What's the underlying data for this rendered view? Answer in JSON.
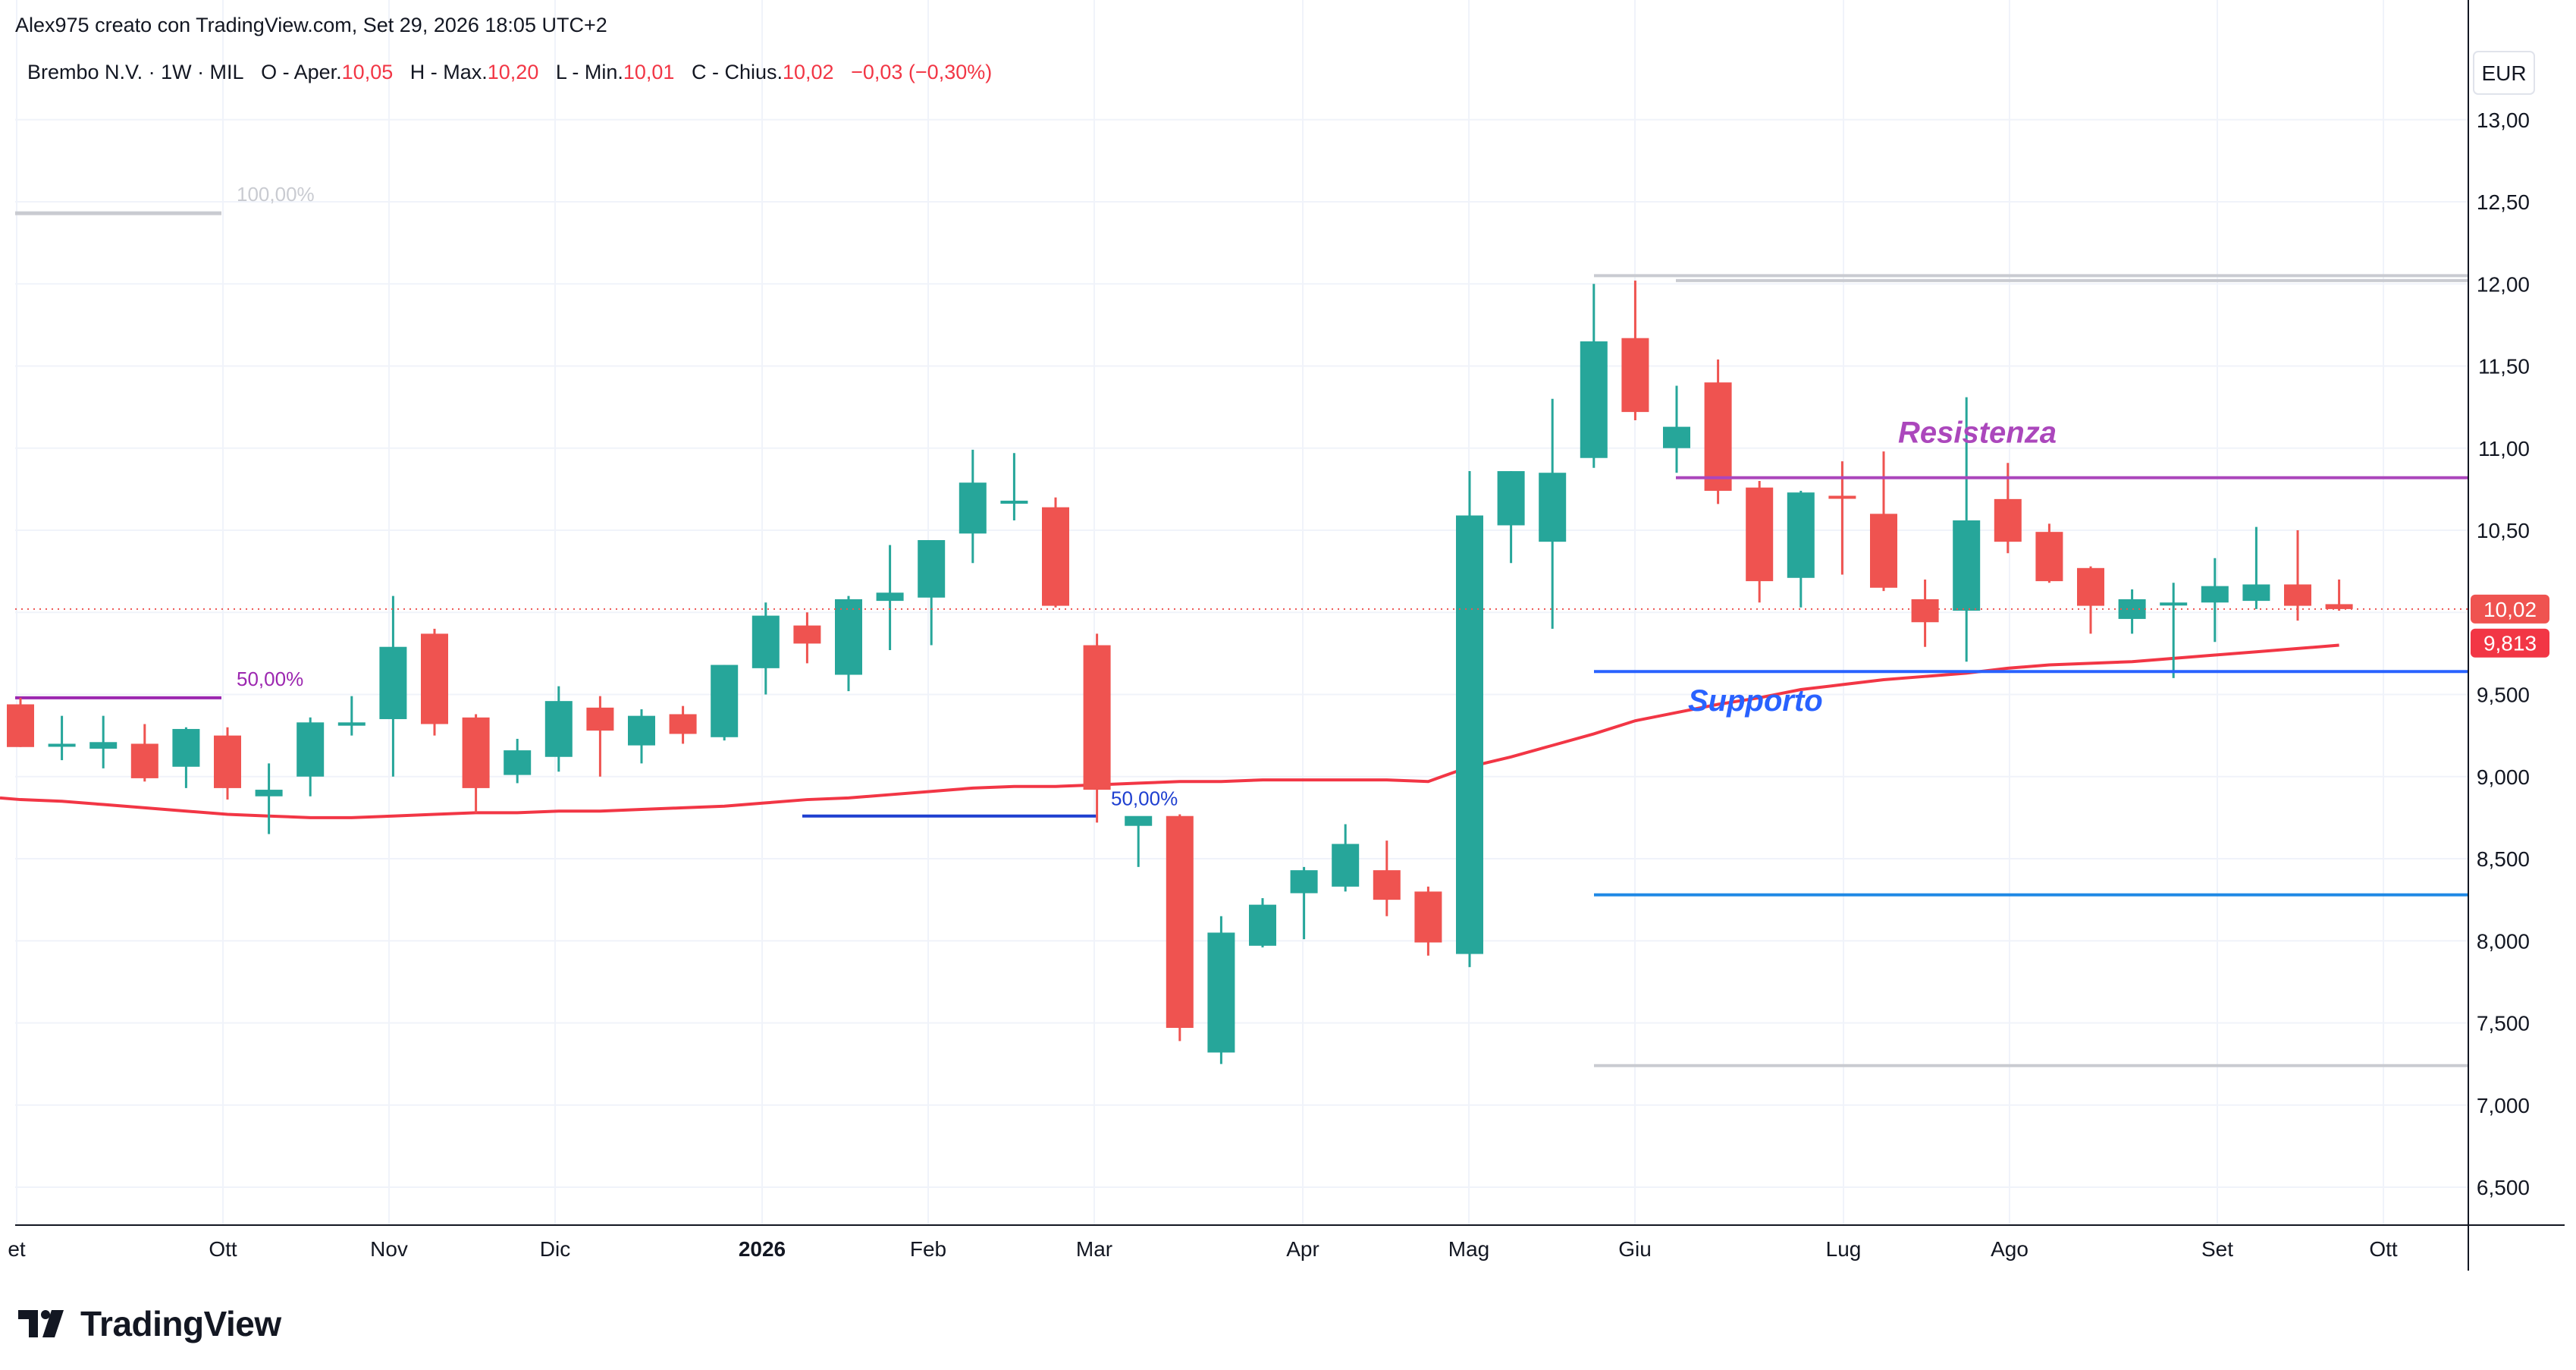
{
  "header": {
    "attribution": "Alex975 creato con TradingView.com, Set 29, 2026 18:05 UTC+2",
    "symbol": "Brembo N.V. · 1W · MIL",
    "open_label": "O - Aper.",
    "open": "10,05",
    "high_label": "H - Max.",
    "high": "10,20",
    "low_label": "L - Min.",
    "low": "10,01",
    "close_label": "C - Chius.",
    "close": "10,02",
    "change": "−0,03 (−0,30%)"
  },
  "brand": {
    "name": "TradingView",
    "icon": "tradingview-logo-icon"
  },
  "colors": {
    "up": "#26a69a",
    "down": "#ef5350",
    "ma": "#f23645",
    "resistance": "#ab47bc",
    "support": "#2962ff",
    "support_line": "#1e88e5",
    "fib_purple": "#9c27b0",
    "fib_blue": "#1e3fd0",
    "gray": "#c9cbd1",
    "grid": "#f0f3fa"
  },
  "chart_data": {
    "type": "candlestick",
    "currency": "EUR",
    "interval": "1W",
    "ylim": [
      6.25,
      13.25
    ],
    "y_ticks": [
      "6,500",
      "7,000",
      "7,500",
      "8,000",
      "8,500",
      "9,000",
      "9,500",
      "10,00",
      "10,50",
      "11,00",
      "11,50",
      "12,00",
      "12,50",
      "13,00"
    ],
    "x_ticks": [
      {
        "label": "et",
        "bold": false
      },
      {
        "label": "Ott",
        "bold": false
      },
      {
        "label": "Nov",
        "bold": false
      },
      {
        "label": "Dic",
        "bold": false
      },
      {
        "label": "2026",
        "bold": true
      },
      {
        "label": "Feb",
        "bold": false
      },
      {
        "label": "Mar",
        "bold": false
      },
      {
        "label": "Apr",
        "bold": false
      },
      {
        "label": "Mag",
        "bold": false
      },
      {
        "label": "Giu",
        "bold": false
      },
      {
        "label": "Lug",
        "bold": false
      },
      {
        "label": "Ago",
        "bold": false
      },
      {
        "label": "Set",
        "bold": false
      },
      {
        "label": "Ott",
        "bold": false
      }
    ],
    "candles": [
      {
        "o": 9.44,
        "h": 9.48,
        "l": 9.18,
        "c": 9.18
      },
      {
        "o": 9.2,
        "h": 9.37,
        "l": 9.1,
        "c": 9.2
      },
      {
        "o": 9.17,
        "h": 9.37,
        "l": 9.05,
        "c": 9.21
      },
      {
        "o": 9.2,
        "h": 9.32,
        "l": 8.97,
        "c": 8.99
      },
      {
        "o": 9.06,
        "h": 9.3,
        "l": 8.93,
        "c": 9.29
      },
      {
        "o": 9.25,
        "h": 9.3,
        "l": 8.86,
        "c": 8.93
      },
      {
        "o": 8.88,
        "h": 9.08,
        "l": 8.65,
        "c": 8.92
      },
      {
        "o": 9.0,
        "h": 9.36,
        "l": 8.88,
        "c": 9.33
      },
      {
        "o": 9.31,
        "h": 9.49,
        "l": 9.25,
        "c": 9.33
      },
      {
        "o": 9.35,
        "h": 10.1,
        "l": 9.0,
        "c": 9.79
      },
      {
        "o": 9.87,
        "h": 9.9,
        "l": 9.25,
        "c": 9.32
      },
      {
        "o": 9.36,
        "h": 9.38,
        "l": 8.78,
        "c": 8.93
      },
      {
        "o": 9.01,
        "h": 9.23,
        "l": 8.96,
        "c": 9.16
      },
      {
        "o": 9.12,
        "h": 9.55,
        "l": 9.03,
        "c": 9.46
      },
      {
        "o": 9.42,
        "h": 9.49,
        "l": 9.0,
        "c": 9.28
      },
      {
        "o": 9.19,
        "h": 9.41,
        "l": 9.08,
        "c": 9.37
      },
      {
        "o": 9.38,
        "h": 9.43,
        "l": 9.2,
        "c": 9.26
      },
      {
        "o": 9.24,
        "h": 9.68,
        "l": 9.22,
        "c": 9.68
      },
      {
        "o": 9.66,
        "h": 10.06,
        "l": 9.5,
        "c": 9.98
      },
      {
        "o": 9.92,
        "h": 10.0,
        "l": 9.69,
        "c": 9.81
      },
      {
        "o": 9.62,
        "h": 10.1,
        "l": 9.52,
        "c": 10.08
      },
      {
        "o": 10.07,
        "h": 10.41,
        "l": 9.77,
        "c": 10.12
      },
      {
        "o": 10.09,
        "h": 10.44,
        "l": 9.8,
        "c": 10.44
      },
      {
        "o": 10.48,
        "h": 10.99,
        "l": 10.3,
        "c": 10.79
      },
      {
        "o": 10.68,
        "h": 10.97,
        "l": 10.56,
        "c": 10.68
      },
      {
        "o": 10.64,
        "h": 10.7,
        "l": 10.03,
        "c": 10.04
      },
      {
        "o": 9.8,
        "h": 9.87,
        "l": 8.72,
        "c": 8.92
      },
      {
        "o": 8.7,
        "h": 8.75,
        "l": 8.45,
        "c": 8.76
      },
      {
        "o": 8.76,
        "h": 8.77,
        "l": 7.39,
        "c": 7.47
      },
      {
        "o": 7.32,
        "h": 8.15,
        "l": 7.25,
        "c": 8.05
      },
      {
        "o": 7.97,
        "h": 8.26,
        "l": 7.96,
        "c": 8.22
      },
      {
        "o": 8.29,
        "h": 8.45,
        "l": 8.01,
        "c": 8.43
      },
      {
        "o": 8.33,
        "h": 8.71,
        "l": 8.3,
        "c": 8.59
      },
      {
        "o": 8.43,
        "h": 8.61,
        "l": 8.15,
        "c": 8.25
      },
      {
        "o": 8.3,
        "h": 8.33,
        "l": 7.91,
        "c": 7.99
      },
      {
        "o": 7.92,
        "h": 10.86,
        "l": 7.84,
        "c": 10.59
      },
      {
        "o": 10.53,
        "h": 10.86,
        "l": 10.3,
        "c": 10.86
      },
      {
        "o": 10.43,
        "h": 11.3,
        "l": 9.9,
        "c": 10.85
      },
      {
        "o": 10.94,
        "h": 12.0,
        "l": 10.88,
        "c": 11.65
      },
      {
        "o": 11.67,
        "h": 12.02,
        "l": 11.17,
        "c": 11.22
      },
      {
        "o": 11.0,
        "h": 11.38,
        "l": 10.85,
        "c": 11.13
      },
      {
        "o": 11.4,
        "h": 11.54,
        "l": 10.66,
        "c": 10.74
      },
      {
        "o": 10.76,
        "h": 10.8,
        "l": 10.06,
        "c": 10.19
      },
      {
        "o": 10.21,
        "h": 10.74,
        "l": 10.03,
        "c": 10.73
      },
      {
        "o": 10.71,
        "h": 10.92,
        "l": 10.23,
        "c": 10.7
      },
      {
        "o": 10.6,
        "h": 10.98,
        "l": 10.13,
        "c": 10.15
      },
      {
        "o": 10.08,
        "h": 10.2,
        "l": 9.79,
        "c": 9.94
      },
      {
        "o": 10.01,
        "h": 11.31,
        "l": 9.7,
        "c": 10.56
      },
      {
        "o": 10.69,
        "h": 10.91,
        "l": 10.36,
        "c": 10.43
      },
      {
        "o": 10.49,
        "h": 10.54,
        "l": 10.18,
        "c": 10.19
      },
      {
        "o": 10.27,
        "h": 10.28,
        "l": 9.87,
        "c": 10.04
      },
      {
        "o": 9.96,
        "h": 10.14,
        "l": 9.87,
        "c": 10.08
      },
      {
        "o": 10.06,
        "h": 10.18,
        "l": 9.6,
        "c": 10.06
      },
      {
        "o": 10.06,
        "h": 10.33,
        "l": 9.82,
        "c": 10.16
      },
      {
        "o": 10.07,
        "h": 10.52,
        "l": 10.02,
        "c": 10.17
      },
      {
        "o": 10.17,
        "h": 10.5,
        "l": 9.95,
        "c": 10.04
      },
      {
        "o": 10.05,
        "h": 10.2,
        "l": 10.01,
        "c": 10.02
      }
    ],
    "moving_average": [
      8.86,
      8.85,
      8.83,
      8.81,
      8.79,
      8.77,
      8.76,
      8.75,
      8.75,
      8.76,
      8.77,
      8.78,
      8.78,
      8.79,
      8.79,
      8.8,
      8.81,
      8.82,
      8.84,
      8.86,
      8.87,
      8.89,
      8.91,
      8.93,
      8.94,
      8.94,
      8.95,
      8.96,
      8.97,
      8.97,
      8.98,
      8.98,
      8.98,
      8.98,
      8.97,
      9.06,
      9.12,
      9.19,
      9.26,
      9.34,
      9.39,
      9.44,
      9.48,
      9.53,
      9.56,
      9.59,
      9.61,
      9.63,
      9.66,
      9.68,
      9.69,
      9.7,
      9.72,
      9.74,
      9.76,
      9.78,
      9.8
    ],
    "current_price": {
      "label": "10,02",
      "value": 10.02
    },
    "ma_value": {
      "label": "9,813",
      "value": 9.813
    },
    "annotations": {
      "resistance": {
        "label": "Resistenza",
        "value": 10.82
      },
      "support": {
        "label": "Supporto",
        "value": 9.64
      },
      "lower_support": {
        "value": 8.28
      },
      "fib_levels": [
        {
          "label": "100,00%",
          "value": 12.43
        },
        {
          "label": "50,00%",
          "value": 9.48
        },
        {
          "label": "50,00%",
          "value": 8.76
        },
        {
          "value": 12.05
        },
        {
          "value": 12.02
        },
        {
          "value": 7.24
        }
      ]
    }
  }
}
